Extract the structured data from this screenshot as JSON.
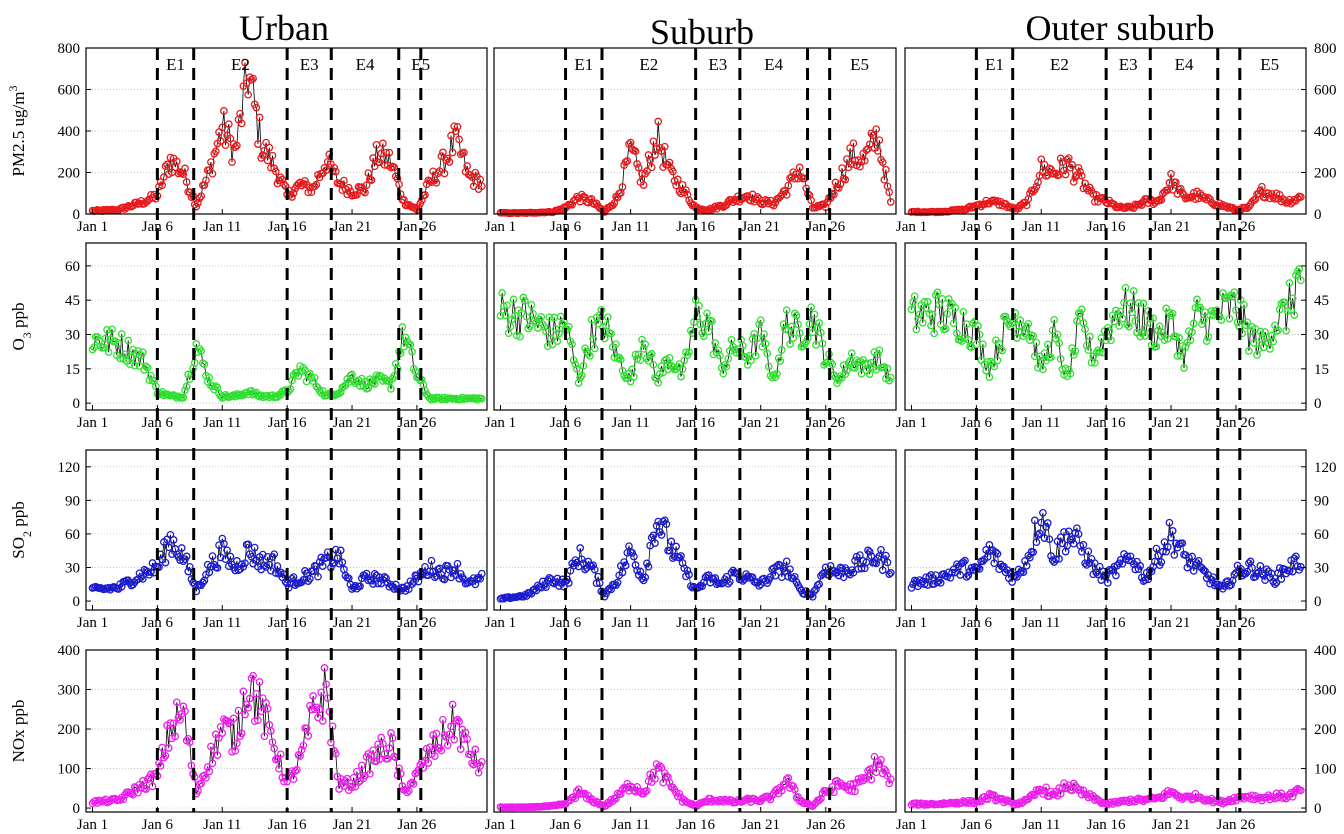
{
  "figure": {
    "columns": [
      "Urban",
      "Suburb",
      "Outer suburb"
    ],
    "rows": [
      {
        "key": "pm25",
        "ylabel": "PM2.5 ug/m",
        "ylabel_sup": "3",
        "ylim": [
          0,
          800
        ],
        "ticks": [
          0,
          200,
          400,
          600,
          800
        ],
        "color": "#e8191c",
        "base": 10,
        "amp": 1.0
      },
      {
        "key": "o3",
        "ylabel": "O",
        "ylabel_sub": "3",
        "ylabel_rest": " ppb",
        "ylim": [
          -3,
          70
        ],
        "ticks": [
          0,
          15,
          30,
          45,
          60
        ],
        "color": "#2fe02f",
        "base": 2,
        "amp": 1.0
      },
      {
        "key": "so2",
        "ylabel": "SO",
        "ylabel_sub": "2",
        "ylabel_rest": " ppb",
        "ylim": [
          -8,
          135
        ],
        "ticks": [
          0,
          30,
          60,
          90,
          120
        ],
        "color": "#1a1ad0",
        "base": 8,
        "amp": 1.0
      },
      {
        "key": "nox",
        "ylabel": "NOx ppb",
        "ylim": [
          -10,
          400
        ],
        "ticks": [
          0,
          100,
          200,
          300,
          400
        ],
        "color": "#ee1fee",
        "base": 10,
        "amp": 1.0
      }
    ],
    "xticks": [
      "Jan 1",
      "Jan 6",
      "Jan 11",
      "Jan 16",
      "Jan 21",
      "Jan 26"
    ],
    "episodes": [
      "E1",
      "E2",
      "E3",
      "E4",
      "E5"
    ],
    "episode_bounds_day": [
      6.0,
      8.8,
      16.0,
      19.4,
      24.6,
      26.3
    ],
    "episode_label_day": [
      7.4,
      12.4,
      17.7,
      22.0,
      28.6
    ]
  },
  "chart_data": [
    {
      "type": "scatter",
      "title": "Urban",
      "ylabel": "PM2.5 ug/m3",
      "x": [
        1,
        3,
        5,
        6,
        7,
        8,
        9,
        10,
        11,
        12,
        13,
        14,
        15,
        16,
        17,
        18,
        19,
        20,
        21,
        22,
        23,
        24,
        25,
        26,
        27,
        28,
        29,
        30,
        31
      ],
      "series": [
        {
          "values": [
            15,
            20,
            60,
            90,
            260,
            200,
            40,
            200,
            420,
            300,
            680,
            340,
            230,
            90,
            140,
            120,
            260,
            150,
            110,
            120,
            290,
            250,
            60,
            20,
            150,
            240,
            360,
            180,
            150
          ]
        }
      ]
    },
    {
      "type": "scatter",
      "title": "Suburb",
      "ylabel": "PM2.5 ug/m3",
      "x": [
        1,
        3,
        5,
        6,
        7,
        8,
        9,
        10,
        11,
        12,
        13,
        14,
        15,
        16,
        17,
        18,
        19,
        20,
        21,
        22,
        23,
        24,
        25,
        26,
        27,
        28,
        29,
        30,
        31
      ],
      "series": [
        {
          "values": [
            5,
            5,
            10,
            30,
            80,
            60,
            10,
            80,
            300,
            150,
            380,
            200,
            120,
            30,
            20,
            40,
            70,
            90,
            60,
            50,
            120,
            220,
            30,
            40,
            160,
            280,
            260,
            380,
            50
          ]
        }
      ]
    },
    {
      "type": "scatter",
      "title": "Outer suburb",
      "ylabel": "PM2.5 ug/m3",
      "x": [
        1,
        3,
        5,
        6,
        7,
        8,
        9,
        10,
        11,
        12,
        13,
        14,
        15,
        16,
        17,
        18,
        19,
        20,
        21,
        22,
        23,
        24,
        25,
        26,
        27,
        28,
        29,
        30,
        31
      ],
      "series": [
        {
          "values": [
            10,
            10,
            20,
            40,
            60,
            50,
            20,
            60,
            220,
            200,
            240,
            170,
            80,
            60,
            30,
            30,
            60,
            60,
            160,
            80,
            90,
            60,
            40,
            20,
            30,
            110,
            90,
            60,
            80
          ]
        }
      ]
    },
    {
      "type": "scatter",
      "title": "Urban",
      "ylabel": "O3 ppb",
      "x": [
        1,
        3,
        5,
        6,
        7,
        8,
        9,
        10,
        11,
        12,
        13,
        14,
        15,
        16,
        17,
        18,
        19,
        20,
        21,
        22,
        23,
        24,
        25,
        26,
        27,
        28,
        29,
        30,
        31
      ],
      "series": [
        {
          "values": [
            28,
            26,
            18,
            5,
            3,
            3,
            25,
            10,
            3,
            3,
            5,
            3,
            3,
            5,
            15,
            10,
            3,
            5,
            12,
            8,
            10,
            8,
            30,
            12,
            2,
            2,
            2,
            2,
            2
          ]
        }
      ]
    },
    {
      "type": "scatter",
      "title": "Suburb",
      "ylabel": "O3 ppb",
      "x": [
        1,
        3,
        5,
        6,
        7,
        8,
        9,
        10,
        11,
        12,
        13,
        14,
        15,
        16,
        17,
        18,
        19,
        20,
        21,
        22,
        23,
        24,
        25,
        26,
        27,
        28,
        29,
        30,
        31
      ],
      "series": [
        {
          "values": [
            40,
            38,
            30,
            35,
            10,
            30,
            35,
            20,
            10,
            30,
            10,
            20,
            12,
            38,
            35,
            15,
            25,
            20,
            30,
            10,
            35,
            30,
            38,
            20,
            10,
            20,
            15,
            20,
            10
          ]
        }
      ]
    },
    {
      "type": "scatter",
      "title": "Outer suburb",
      "ylabel": "O3 ppb",
      "x": [
        1,
        3,
        5,
        6,
        7,
        8,
        9,
        10,
        11,
        12,
        13,
        14,
        15,
        16,
        17,
        18,
        19,
        20,
        21,
        22,
        23,
        24,
        25,
        26,
        27,
        28,
        29,
        30,
        31
      ],
      "series": [
        {
          "values": [
            38,
            40,
            35,
            30,
            15,
            30,
            38,
            35,
            15,
            30,
            10,
            35,
            20,
            30,
            42,
            40,
            35,
            30,
            35,
            20,
            38,
            35,
            40,
            42,
            30,
            25,
            35,
            40,
            58
          ]
        }
      ]
    },
    {
      "type": "scatter",
      "title": "Urban",
      "ylabel": "SO2 ppb",
      "x": [
        1,
        3,
        5,
        6,
        7,
        8,
        9,
        10,
        11,
        12,
        13,
        14,
        15,
        16,
        17,
        18,
        19,
        20,
        21,
        22,
        23,
        24,
        25,
        26,
        27,
        28,
        29,
        30,
        31
      ],
      "series": [
        {
          "values": [
            10,
            12,
            25,
            30,
            55,
            40,
            10,
            30,
            45,
            30,
            45,
            35,
            35,
            15,
            20,
            25,
            35,
            40,
            10,
            20,
            20,
            15,
            10,
            20,
            30,
            25,
            30,
            15,
            20
          ]
        }
      ]
    },
    {
      "type": "scatter",
      "title": "Suburb",
      "ylabel": "SO2 ppb",
      "x": [
        1,
        3,
        5,
        6,
        7,
        8,
        9,
        10,
        11,
        12,
        13,
        14,
        15,
        16,
        17,
        18,
        19,
        20,
        21,
        22,
        23,
        24,
        25,
        26,
        27,
        28,
        29,
        30,
        31
      ],
      "series": [
        {
          "values": [
            2,
            5,
            20,
            15,
            40,
            30,
            5,
            20,
            45,
            20,
            75,
            50,
            30,
            10,
            20,
            15,
            25,
            20,
            15,
            25,
            30,
            10,
            5,
            30,
            25,
            30,
            35,
            40,
            30
          ]
        }
      ]
    },
    {
      "type": "scatter",
      "title": "Outer suburb",
      "ylabel": "SO2 ppb",
      "x": [
        1,
        3,
        5,
        6,
        7,
        8,
        9,
        10,
        11,
        12,
        13,
        14,
        15,
        16,
        17,
        18,
        19,
        20,
        21,
        22,
        23,
        24,
        25,
        26,
        27,
        28,
        29,
        30,
        31
      ],
      "series": [
        {
          "values": [
            15,
            20,
            30,
            25,
            45,
            30,
            20,
            40,
            80,
            40,
            60,
            50,
            30,
            20,
            30,
            40,
            20,
            40,
            60,
            40,
            30,
            20,
            10,
            25,
            30,
            25,
            20,
            30,
            35
          ]
        }
      ]
    },
    {
      "type": "scatter",
      "title": "Urban",
      "ylabel": "NOx ppb",
      "x": [
        1,
        3,
        5,
        6,
        7,
        8,
        9,
        10,
        11,
        12,
        13,
        14,
        15,
        16,
        17,
        18,
        19,
        20,
        21,
        22,
        23,
        24,
        25,
        26,
        27,
        28,
        29,
        30,
        31
      ],
      "series": [
        {
          "values": [
            15,
            20,
            60,
            80,
            200,
            240,
            40,
            120,
            200,
            180,
            320,
            250,
            160,
            60,
            120,
            240,
            300,
            60,
            60,
            100,
            140,
            160,
            40,
            80,
            140,
            180,
            220,
            140,
            100
          ]
        }
      ]
    },
    {
      "type": "scatter",
      "title": "Suburb",
      "ylabel": "NOx ppb",
      "x": [
        1,
        3,
        5,
        6,
        7,
        8,
        9,
        10,
        11,
        12,
        13,
        14,
        15,
        16,
        17,
        18,
        19,
        20,
        21,
        22,
        23,
        24,
        25,
        26,
        27,
        28,
        29,
        30,
        31
      ],
      "series": [
        {
          "values": [
            2,
            2,
            5,
            10,
            40,
            20,
            5,
            30,
            60,
            40,
            100,
            60,
            20,
            5,
            20,
            20,
            15,
            20,
            20,
            30,
            70,
            20,
            5,
            40,
            60,
            50,
            70,
            120,
            60
          ]
        }
      ]
    },
    {
      "type": "scatter",
      "title": "Outer suburb",
      "ylabel": "NOx ppb",
      "x": [
        1,
        3,
        5,
        6,
        7,
        8,
        9,
        10,
        11,
        12,
        13,
        14,
        15,
        16,
        17,
        18,
        19,
        20,
        21,
        22,
        23,
        24,
        25,
        26,
        27,
        28,
        29,
        30,
        31
      ],
      "series": [
        {
          "values": [
            10,
            10,
            15,
            15,
            30,
            20,
            10,
            20,
            50,
            30,
            60,
            40,
            25,
            10,
            15,
            20,
            20,
            25,
            40,
            25,
            30,
            20,
            15,
            25,
            30,
            25,
            30,
            30,
            45
          ]
        }
      ]
    }
  ]
}
